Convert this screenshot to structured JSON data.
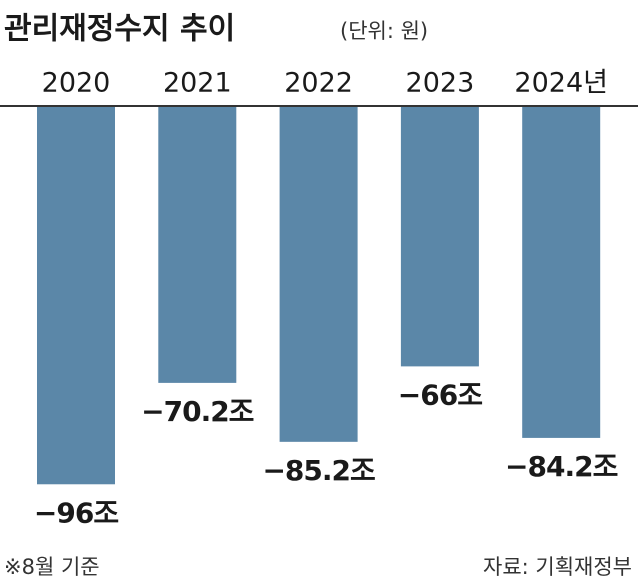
{
  "chart_data": {
    "type": "bar",
    "title": "관리재정수지 추이",
    "subtitle": "(단위: 원)",
    "categories": [
      "2020",
      "2021",
      "2022",
      "2023",
      "2024년"
    ],
    "values": [
      -96,
      -70.2,
      -85.2,
      -66,
      -84.2
    ],
    "value_labels": [
      "−96조",
      "−70.2조",
      "−85.2조",
      "−66조",
      "−84.2조"
    ],
    "color": "#5b87a8",
    "note": "※8월 기준",
    "source": "자료: 기획재정부"
  }
}
